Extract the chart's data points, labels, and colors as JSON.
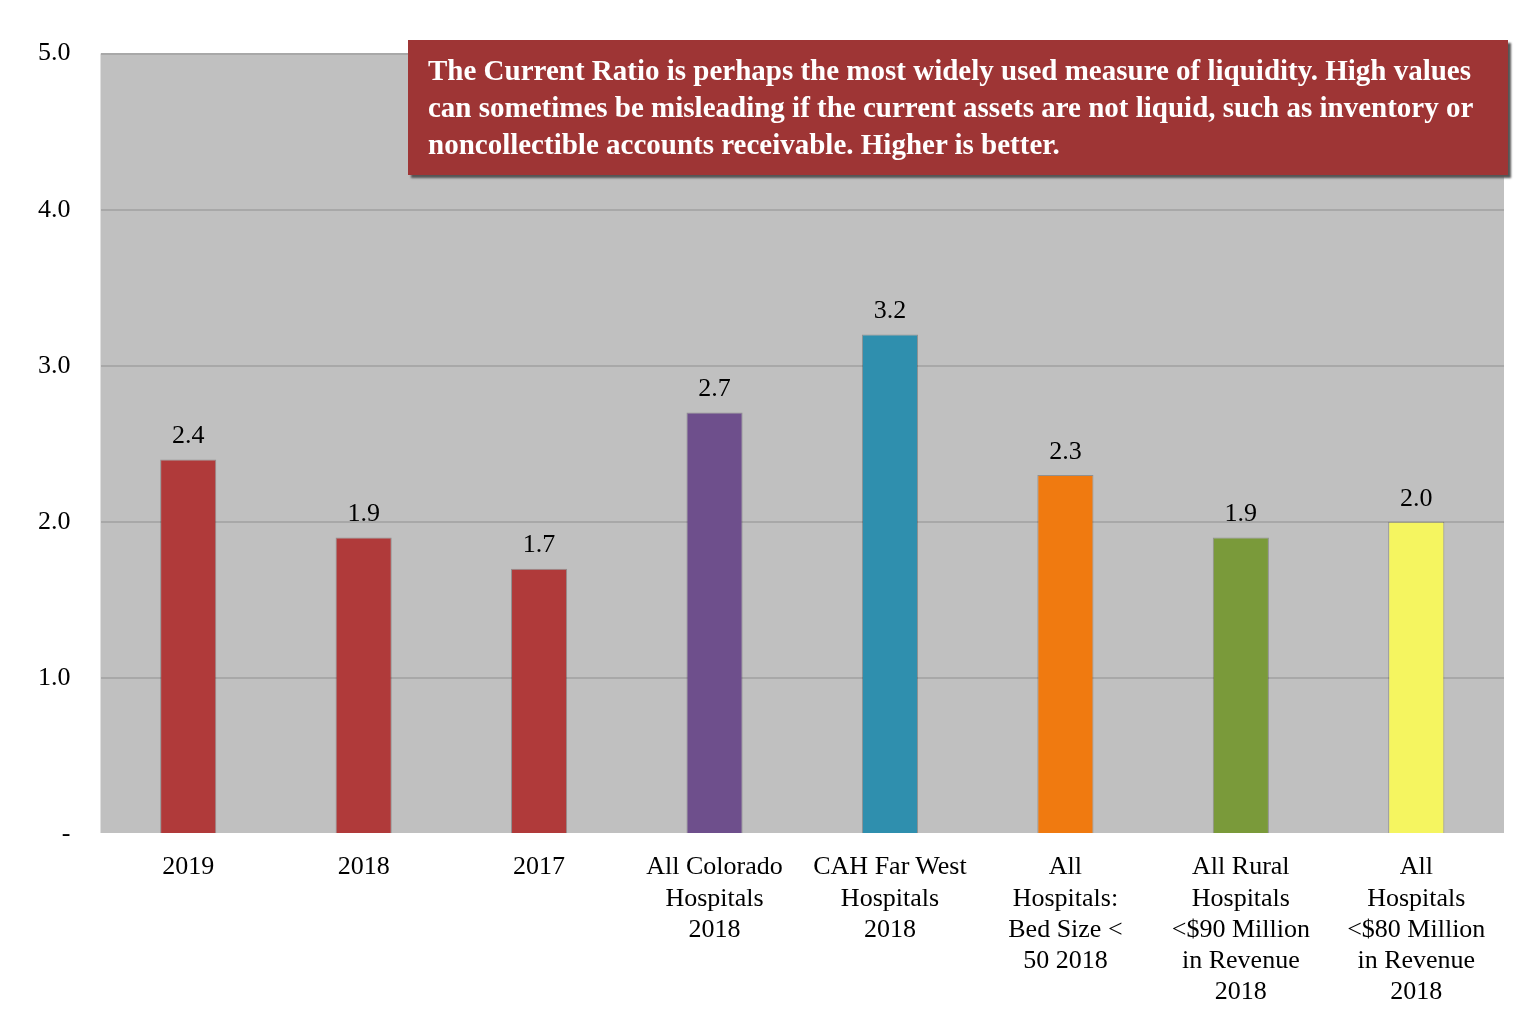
{
  "chart_data": {
    "type": "bar",
    "categories": [
      "2019",
      "2018",
      "2017",
      "All Colorado Hospitals 2018",
      "CAH Far West Hospitals 2018",
      "All Hospitals: Bed Size < 50 2018",
      "All Rural Hospitals <$90 Million in Revenue 2018",
      "All Hospitals <$80 Million in Revenue 2018"
    ],
    "values": [
      2.4,
      1.9,
      1.7,
      2.7,
      3.2,
      2.3,
      1.9,
      2.0
    ],
    "colors": [
      "#b03a3a",
      "#b03a3a",
      "#b03a3a",
      "#6e4f8c",
      "#2f8fae",
      "#f07a10",
      "#7a9a3a",
      "#f5f560"
    ],
    "value_labels": [
      "2.4",
      "1.9",
      "1.7",
      "2.7",
      "3.2",
      "2.3",
      "1.9",
      "2.0"
    ],
    "ylim": [
      0,
      5
    ],
    "yticks": [
      {
        "value": 0,
        "label": "-"
      },
      {
        "value": 1,
        "label": "1.0"
      },
      {
        "value": 2,
        "label": "2.0"
      },
      {
        "value": 3,
        "label": "3.0"
      },
      {
        "value": 4,
        "label": "4.0"
      },
      {
        "value": 5,
        "label": "5.0"
      }
    ],
    "grid": "y",
    "annotations": [
      "The Current Ratio is perhaps the most widely used measure of liquidity. High values can sometimes be misleading if the current assets are not liquid, such as inventory or noncollectible accounts receivable. Higher is better."
    ]
  }
}
